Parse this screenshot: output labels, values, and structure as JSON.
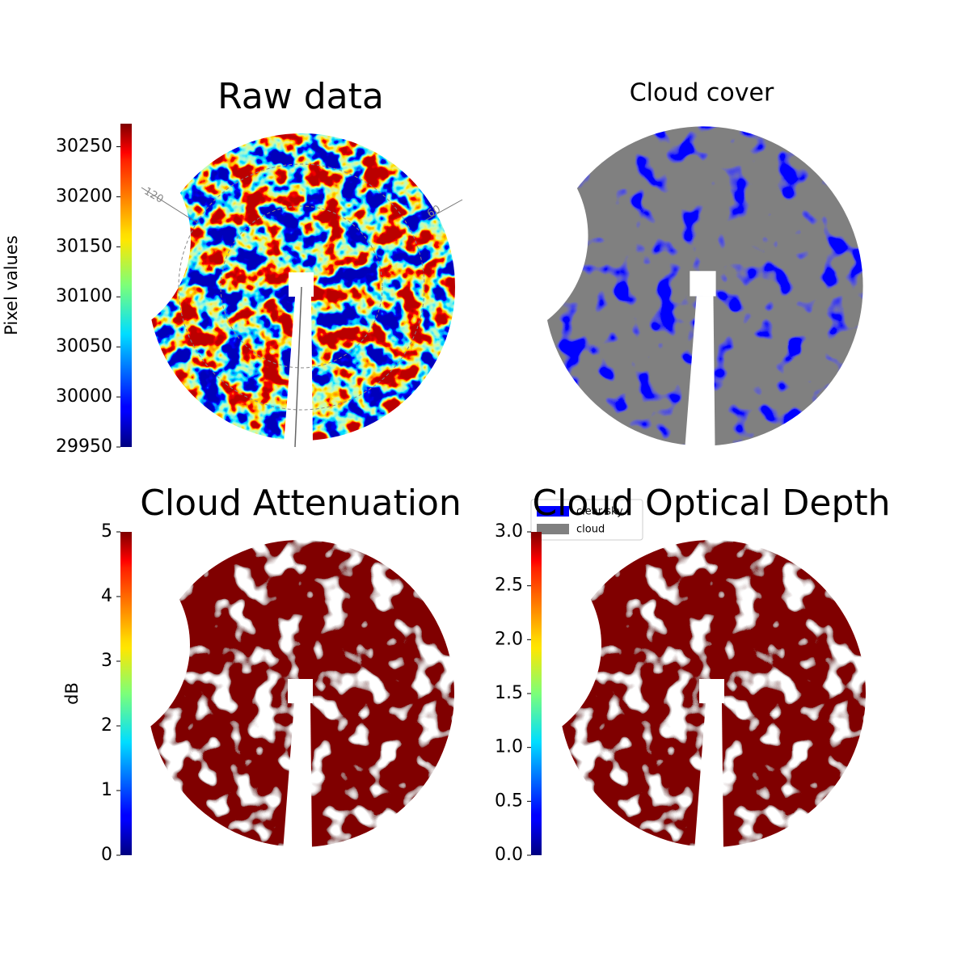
{
  "chart_data": [
    {
      "type": "image",
      "title": "Raw data",
      "colorbar_label": "Pixel values",
      "colormap": "jet",
      "clim": [
        29950,
        30273
      ],
      "cticks": [
        29950,
        30000,
        30050,
        30100,
        30150,
        30200,
        30250
      ],
      "annotations": [
        "120",
        "60"
      ]
    },
    {
      "type": "image",
      "title": "Cloud cover",
      "series": [
        {
          "name": "clear sky",
          "color": "#0000ff"
        },
        {
          "name": "cloud",
          "color": "#808080"
        }
      ]
    },
    {
      "type": "image",
      "title": "Cloud Attenuation",
      "colorbar_label": "dB",
      "colormap": "jet",
      "clim": [
        0,
        5
      ],
      "cticks": [
        0,
        1,
        2,
        3,
        4,
        5
      ]
    },
    {
      "type": "image",
      "title": "Cloud Optical Depth",
      "colormap": "jet",
      "clim": [
        0,
        3
      ],
      "cticks": [
        {
          "value": 0,
          "label": "0.0"
        },
        {
          "value": 0.5,
          "label": "0.5"
        },
        {
          "value": 1,
          "label": "1.0"
        },
        {
          "value": 1.5,
          "label": "1.5"
        },
        {
          "value": 2,
          "label": "2.0"
        },
        {
          "value": 2.5,
          "label": "2.5"
        },
        {
          "value": 3,
          "label": "3.0"
        }
      ]
    }
  ]
}
